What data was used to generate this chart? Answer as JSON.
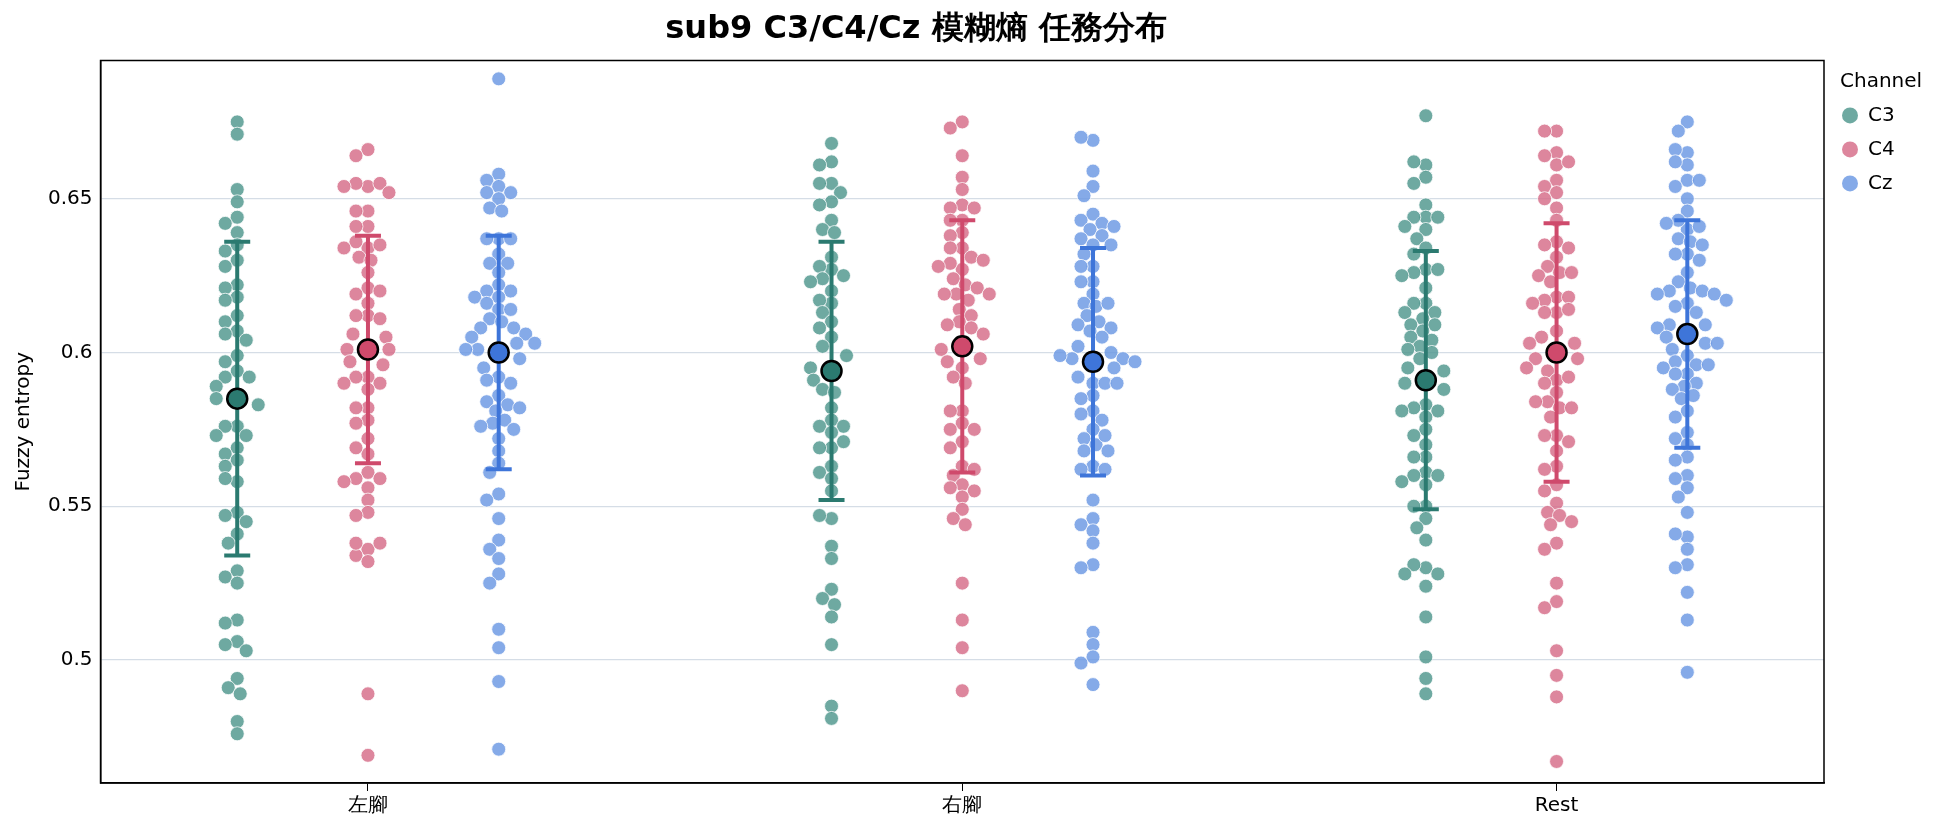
{
  "chart_data": {
    "type": "scatter",
    "title": "sub9 C3/C4/Cz 模糊熵 任務分布",
    "ylabel": "Fuzzy entropy",
    "legend_title": "Channel",
    "legend": "top right",
    "grid": "y",
    "marker": "circle",
    "categories": [
      "左腳",
      "右腳",
      "Rest"
    ],
    "ylim": [
      0.46,
      0.695
    ],
    "yticks": [
      0.5,
      0.55,
      0.6,
      0.65
    ],
    "series": [
      {
        "name": "C3",
        "color": "#4e968c",
        "x": [
          "左腳",
          "左腳",
          "左腳",
          "左腳",
          "左腳",
          "左腳",
          "左腳",
          "左腳",
          "左腳",
          "左腳",
          "左腳",
          "左腳",
          "左腳",
          "左腳",
          "左腳",
          "左腳",
          "左腳",
          "左腳",
          "左腳",
          "左腳",
          "左腳",
          "左腳",
          "左腳",
          "左腳",
          "左腳",
          "左腳",
          "左腳",
          "左腳",
          "左腳",
          "左腳",
          "左腳",
          "左腳",
          "左腳",
          "左腳",
          "左腳",
          "左腳",
          "左腳",
          "左腳",
          "左腳",
          "左腳",
          "左腳",
          "左腳",
          "左腳",
          "左腳",
          "左腳",
          "左腳",
          "左腳",
          "左腳",
          "左腳",
          "左腳",
          "左腳",
          "左腳",
          "左腳",
          "左腳",
          "左腳",
          "左腳",
          "右腳",
          "右腳",
          "右腳",
          "右腳",
          "右腳",
          "右腳",
          "右腳",
          "右腳",
          "右腳",
          "右腳",
          "右腳",
          "右腳",
          "右腳",
          "右腳",
          "右腳",
          "右腳",
          "右腳",
          "右腳",
          "右腳",
          "右腳",
          "右腳",
          "右腳",
          "右腳",
          "右腳",
          "右腳",
          "右腳",
          "右腳",
          "右腳",
          "右腳",
          "右腳",
          "右腳",
          "右腳",
          "右腳",
          "右腳",
          "右腳",
          "右腳",
          "右腳",
          "右腳",
          "右腳",
          "右腳",
          "右腳",
          "右腳",
          "右腳",
          "右腳",
          "右腳",
          "右腳",
          "右腳",
          "右腳",
          "右腳",
          "右腳",
          "右腳",
          "右腳",
          "右腳",
          "Rest",
          "Rest",
          "Rest",
          "Rest",
          "Rest",
          "Rest",
          "Rest",
          "Rest",
          "Rest",
          "Rest",
          "Rest",
          "Rest",
          "Rest",
          "Rest",
          "Rest",
          "Rest",
          "Rest",
          "Rest",
          "Rest",
          "Rest",
          "Rest",
          "Rest",
          "Rest",
          "Rest",
          "Rest",
          "Rest",
          "Rest",
          "Rest",
          "Rest",
          "Rest",
          "Rest",
          "Rest",
          "Rest",
          "Rest",
          "Rest",
          "Rest",
          "Rest",
          "Rest",
          "Rest",
          "Rest",
          "Rest",
          "Rest",
          "Rest",
          "Rest",
          "Rest",
          "Rest",
          "Rest",
          "Rest",
          "Rest",
          "Rest",
          "Rest",
          "Rest",
          "Rest",
          "Rest",
          "Rest",
          "Rest",
          "Rest",
          "Rest",
          "Rest",
          "Rest",
          "Rest",
          "Rest",
          "Rest",
          "Rest",
          "Rest",
          "Rest"
        ],
        "values": [
          0.675,
          0.671,
          0.653,
          0.649,
          0.644,
          0.642,
          0.639,
          0.635,
          0.633,
          0.63,
          0.628,
          0.622,
          0.621,
          0.618,
          0.617,
          0.612,
          0.61,
          0.607,
          0.606,
          0.604,
          0.599,
          0.597,
          0.594,
          0.592,
          0.592,
          0.589,
          0.585,
          0.583,
          0.576,
          0.576,
          0.573,
          0.573,
          0.569,
          0.567,
          0.565,
          0.563,
          0.558,
          0.559,
          0.548,
          0.547,
          0.545,
          0.541,
          0.538,
          0.529,
          0.527,
          0.525,
          0.513,
          0.512,
          0.506,
          0.505,
          0.503,
          0.494,
          0.491,
          0.489,
          0.48,
          0.476,
          0.668,
          0.662,
          0.661,
          0.655,
          0.655,
          0.652,
          0.649,
          0.648,
          0.643,
          0.64,
          0.639,
          0.631,
          0.627,
          0.628,
          0.625,
          0.624,
          0.623,
          0.62,
          0.616,
          0.617,
          0.613,
          0.61,
          0.605,
          0.608,
          0.602,
          0.599,
          0.595,
          0.591,
          0.588,
          0.587,
          0.582,
          0.578,
          0.576,
          0.576,
          0.574,
          0.569,
          0.569,
          0.571,
          0.563,
          0.561,
          0.559,
          0.555,
          0.546,
          0.547,
          0.537,
          0.533,
          0.523,
          0.52,
          0.518,
          0.514,
          0.505,
          0.485,
          0.481,
          0.677,
          0.661,
          0.662,
          0.657,
          0.655,
          0.648,
          0.644,
          0.644,
          0.644,
          0.64,
          0.641,
          0.637,
          0.634,
          0.632,
          0.627,
          0.626,
          0.627,
          0.625,
          0.621,
          0.616,
          0.616,
          0.613,
          0.613,
          0.611,
          0.609,
          0.609,
          0.607,
          0.604,
          0.605,
          0.602,
          0.6,
          0.601,
          0.595,
          0.598,
          0.594,
          0.59,
          0.588,
          0.583,
          0.582,
          0.581,
          0.581,
          0.579,
          0.575,
          0.573,
          0.57,
          0.566,
          0.566,
          0.561,
          0.56,
          0.56,
          0.558,
          0.557,
          0.55,
          0.55,
          0.546,
          0.543,
          0.539,
          0.53,
          0.531,
          0.528,
          0.528,
          0.524,
          0.514,
          0.501,
          0.494,
          0.489
        ]
      },
      {
        "name": "C4",
        "color": "#d66b87",
        "x": [
          "左腳",
          "左腳",
          "左腳",
          "左腳",
          "左腳",
          "左腳",
          "左腳",
          "左腳",
          "左腳",
          "左腳",
          "左腳",
          "左腳",
          "左腳",
          "左腳",
          "左腳",
          "左腳",
          "左腳",
          "左腳",
          "左腳",
          "左腳",
          "左腳",
          "左腳",
          "左腳",
          "左腳",
          "左腳",
          "左腳",
          "左腳",
          "左腳",
          "左腳",
          "左腳",
          "左腳",
          "左腳",
          "左腳",
          "左腳",
          "左腳",
          "左腳",
          "左腳",
          "左腳",
          "左腳",
          "左腳",
          "左腳",
          "左腳",
          "左腳",
          "左腳",
          "左腳",
          "左腳",
          "左腳",
          "左腳",
          "左腳",
          "左腳",
          "左腳",
          "左腳",
          "左腳",
          "左腳",
          "左腳",
          "左腳",
          "左腳",
          "左腳",
          "右腳",
          "右腳",
          "右腳",
          "右腳",
          "右腳",
          "右腳",
          "右腳",
          "右腳",
          "右腳",
          "右腳",
          "右腳",
          "右腳",
          "右腳",
          "右腳",
          "右腳",
          "右腳",
          "右腳",
          "右腳",
          "右腳",
          "右腳",
          "右腳",
          "右腳",
          "右腳",
          "右腳",
          "右腳",
          "右腳",
          "右腳",
          "右腳",
          "右腳",
          "右腳",
          "右腳",
          "右腳",
          "右腳",
          "右腳",
          "右腳",
          "右腳",
          "右腳",
          "右腳",
          "右腳",
          "右腳",
          "右腳",
          "右腳",
          "右腳",
          "右腳",
          "右腳",
          "右腳",
          "右腳",
          "右腳",
          "右腳",
          "右腳",
          "右腳",
          "右腳",
          "右腳",
          "右腳",
          "右腳",
          "右腳",
          "右腳",
          "右腳",
          "右腳",
          "Rest",
          "Rest",
          "Rest",
          "Rest",
          "Rest",
          "Rest",
          "Rest",
          "Rest",
          "Rest",
          "Rest",
          "Rest",
          "Rest",
          "Rest",
          "Rest",
          "Rest",
          "Rest",
          "Rest",
          "Rest",
          "Rest",
          "Rest",
          "Rest",
          "Rest",
          "Rest",
          "Rest",
          "Rest",
          "Rest",
          "Rest",
          "Rest",
          "Rest",
          "Rest",
          "Rest",
          "Rest",
          "Rest",
          "Rest",
          "Rest",
          "Rest",
          "Rest",
          "Rest",
          "Rest",
          "Rest",
          "Rest",
          "Rest",
          "Rest",
          "Rest",
          "Rest",
          "Rest",
          "Rest",
          "Rest",
          "Rest",
          "Rest",
          "Rest",
          "Rest",
          "Rest",
          "Rest",
          "Rest",
          "Rest",
          "Rest",
          "Rest",
          "Rest",
          "Rest",
          "Rest",
          "Rest",
          "Rest",
          "Rest",
          "Rest",
          "Rest",
          "Rest"
        ],
        "values": [
          0.666,
          0.664,
          0.654,
          0.655,
          0.655,
          0.654,
          0.652,
          0.646,
          0.646,
          0.641,
          0.641,
          0.634,
          0.636,
          0.635,
          0.634,
          0.631,
          0.63,
          0.626,
          0.621,
          0.619,
          0.62,
          0.616,
          0.612,
          0.612,
          0.611,
          0.606,
          0.605,
          0.601,
          0.601,
          0.597,
          0.596,
          0.592,
          0.592,
          0.59,
          0.59,
          0.588,
          0.582,
          0.582,
          0.578,
          0.577,
          0.572,
          0.567,
          0.569,
          0.561,
          0.559,
          0.559,
          0.558,
          0.556,
          0.552,
          0.548,
          0.547,
          0.536,
          0.534,
          0.532,
          0.538,
          0.538,
          0.489,
          0.469,
          0.675,
          0.673,
          0.664,
          0.657,
          0.653,
          0.648,
          0.647,
          0.647,
          0.643,
          0.643,
          0.639,
          0.638,
          0.634,
          0.634,
          0.631,
          0.627,
          0.629,
          0.63,
          0.628,
          0.624,
          0.622,
          0.621,
          0.619,
          0.617,
          0.619,
          0.619,
          0.614,
          0.612,
          0.61,
          0.609,
          0.608,
          0.606,
          0.601,
          0.598,
          0.597,
          0.595,
          0.592,
          0.59,
          0.581,
          0.581,
          0.577,
          0.575,
          0.575,
          0.571,
          0.569,
          0.563,
          0.56,
          0.562,
          0.557,
          0.556,
          0.555,
          0.553,
          0.549,
          0.546,
          0.544,
          0.525,
          0.513,
          0.504,
          0.49,
          0.672,
          0.672,
          0.665,
          0.664,
          0.661,
          0.662,
          0.656,
          0.654,
          0.652,
          0.65,
          0.647,
          0.643,
          0.636,
          0.635,
          0.634,
          0.631,
          0.628,
          0.626,
          0.626,
          0.625,
          0.623,
          0.618,
          0.617,
          0.618,
          0.616,
          0.613,
          0.614,
          0.613,
          0.607,
          0.605,
          0.603,
          0.603,
          0.598,
          0.598,
          0.594,
          0.595,
          0.591,
          0.592,
          0.59,
          0.587,
          0.584,
          0.582,
          0.582,
          0.584,
          0.579,
          0.573,
          0.573,
          0.571,
          0.568,
          0.563,
          0.562,
          0.557,
          0.555,
          0.551,
          0.548,
          0.547,
          0.544,
          0.545,
          0.538,
          0.536,
          0.525,
          0.519,
          0.517,
          0.503,
          0.495,
          0.488,
          0.467
        ]
      },
      {
        "name": "Cz",
        "color": "#6a97e3",
        "x": [
          "左腳",
          "左腳",
          "左腳",
          "左腳",
          "左腳",
          "左腳",
          "左腳",
          "左腳",
          "左腳",
          "左腳",
          "左腳",
          "左腳",
          "左腳",
          "左腳",
          "左腳",
          "左腳",
          "左腳",
          "左腳",
          "左腳",
          "左腳",
          "左腳",
          "左腳",
          "左腳",
          "左腳",
          "左腳",
          "左腳",
          "左腳",
          "左腳",
          "左腳",
          "左腳",
          "左腳",
          "左腳",
          "左腳",
          "左腳",
          "左腳",
          "左腳",
          "左腳",
          "左腳",
          "左腳",
          "左腳",
          "左腳",
          "左腳",
          "左腳",
          "左腳",
          "左腳",
          "左腳",
          "左腳",
          "左腳",
          "左腳",
          "左腳",
          "左腳",
          "左腳",
          "左腳",
          "左腳",
          "左腳",
          "左腳",
          "左腳",
          "左腳",
          "左腳",
          "左腳",
          "左腳",
          "左腳",
          "左腳",
          "左腳",
          "右腳",
          "右腳",
          "右腳",
          "右腳",
          "右腳",
          "右腳",
          "右腳",
          "右腳",
          "右腳",
          "右腳",
          "右腳",
          "右腳",
          "右腳",
          "右腳",
          "右腳",
          "右腳",
          "右腳",
          "右腳",
          "右腳",
          "右腳",
          "右腳",
          "右腳",
          "右腳",
          "右腳",
          "右腳",
          "右腳",
          "右腳",
          "右腳",
          "右腳",
          "右腳",
          "右腳",
          "右腳",
          "右腳",
          "右腳",
          "右腳",
          "右腳",
          "右腳",
          "右腳",
          "右腳",
          "右腳",
          "右腳",
          "右腳",
          "右腳",
          "右腳",
          "右腳",
          "右腳",
          "右腳",
          "右腳",
          "右腳",
          "右腳",
          "右腳",
          "右腳",
          "右腳",
          "右腳",
          "右腳",
          "右腳",
          "右腳",
          "右腳",
          "右腳",
          "右腳",
          "右腳",
          "右腳",
          "右腳",
          "右腳",
          "右腳",
          "右腳",
          "Rest",
          "Rest",
          "Rest",
          "Rest",
          "Rest",
          "Rest",
          "Rest",
          "Rest",
          "Rest",
          "Rest",
          "Rest",
          "Rest",
          "Rest",
          "Rest",
          "Rest",
          "Rest",
          "Rest",
          "Rest",
          "Rest",
          "Rest",
          "Rest",
          "Rest",
          "Rest",
          "Rest",
          "Rest",
          "Rest",
          "Rest",
          "Rest",
          "Rest",
          "Rest",
          "Rest",
          "Rest",
          "Rest",
          "Rest",
          "Rest",
          "Rest",
          "Rest",
          "Rest",
          "Rest",
          "Rest",
          "Rest",
          "Rest",
          "Rest",
          "Rest",
          "Rest",
          "Rest",
          "Rest",
          "Rest",
          "Rest",
          "Rest",
          "Rest",
          "Rest",
          "Rest",
          "Rest",
          "Rest",
          "Rest",
          "Rest",
          "Rest",
          "Rest",
          "Rest",
          "Rest",
          "Rest",
          "Rest",
          "Rest",
          "Rest",
          "Rest",
          "Rest",
          "Rest",
          "Rest",
          "Rest",
          "Rest"
        ],
        "values": [
          0.689,
          0.658,
          0.656,
          0.654,
          0.652,
          0.652,
          0.65,
          0.647,
          0.646,
          0.637,
          0.637,
          0.637,
          0.632,
          0.629,
          0.629,
          0.626,
          0.622,
          0.62,
          0.62,
          0.618,
          0.618,
          0.616,
          0.614,
          0.614,
          0.611,
          0.61,
          0.608,
          0.608,
          0.606,
          0.605,
          0.603,
          0.603,
          0.601,
          0.601,
          0.598,
          0.595,
          0.592,
          0.591,
          0.59,
          0.586,
          0.584,
          0.583,
          0.581,
          0.582,
          0.578,
          0.577,
          0.576,
          0.575,
          0.572,
          0.568,
          0.564,
          0.561,
          0.554,
          0.552,
          0.546,
          0.539,
          0.536,
          0.533,
          0.528,
          0.525,
          0.51,
          0.504,
          0.493,
          0.471,
          0.669,
          0.67,
          0.659,
          0.654,
          0.651,
          0.645,
          0.643,
          0.642,
          0.641,
          0.64,
          0.638,
          0.637,
          0.635,
          0.635,
          0.632,
          0.628,
          0.628,
          0.623,
          0.623,
          0.619,
          0.616,
          0.615,
          0.616,
          0.612,
          0.61,
          0.609,
          0.608,
          0.607,
          0.605,
          0.602,
          0.6,
          0.598,
          0.598,
          0.599,
          0.597,
          0.595,
          0.592,
          0.59,
          0.59,
          0.59,
          0.586,
          0.585,
          0.581,
          0.58,
          0.578,
          0.575,
          0.572,
          0.57,
          0.573,
          0.568,
          0.568,
          0.563,
          0.562,
          0.562,
          0.552,
          0.546,
          0.544,
          0.542,
          0.538,
          0.531,
          0.53,
          0.509,
          0.505,
          0.501,
          0.499,
          0.492,
          0.675,
          0.672,
          0.665,
          0.666,
          0.661,
          0.662,
          0.656,
          0.654,
          0.656,
          0.65,
          0.646,
          0.64,
          0.643,
          0.641,
          0.642,
          0.637,
          0.636,
          0.635,
          0.632,
          0.632,
          0.63,
          0.626,
          0.623,
          0.621,
          0.62,
          0.62,
          0.619,
          0.619,
          0.616,
          0.617,
          0.615,
          0.613,
          0.609,
          0.609,
          0.608,
          0.605,
          0.603,
          0.603,
          0.601,
          0.599,
          0.597,
          0.596,
          0.596,
          0.595,
          0.593,
          0.593,
          0.59,
          0.589,
          0.588,
          0.586,
          0.585,
          0.581,
          0.579,
          0.574,
          0.572,
          0.57,
          0.566,
          0.565,
          0.56,
          0.559,
          0.556,
          0.553,
          0.548,
          0.54,
          0.541,
          0.536,
          0.531,
          0.53,
          0.522,
          0.513,
          0.496
        ]
      },
      {
        "color": "#2b7a70",
        "x": [
          "左腳",
          "右腳",
          "Rest"
        ],
        "values": [
          0.585,
          0.594,
          0.591
        ],
        "errors": [
          0.051,
          0.042,
          0.042
        ]
      },
      {
        "color": "#cf4a6c",
        "x": [
          "左腳",
          "右腳",
          "Rest"
        ],
        "values": [
          0.601,
          0.602,
          0.6
        ],
        "errors": [
          0.037,
          0.041,
          0.042
        ]
      },
      {
        "color": "#3e75d9",
        "x": [
          "左腳",
          "右腳",
          "Rest"
        ],
        "values": [
          0.6,
          0.597,
          0.606
        ],
        "errors": [
          0.038,
          0.037,
          0.037
        ]
      }
    ]
  }
}
